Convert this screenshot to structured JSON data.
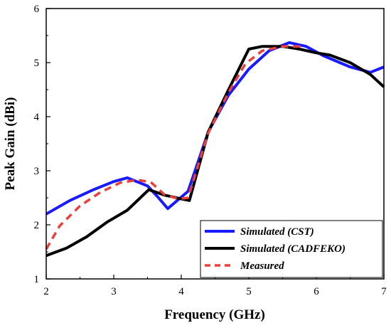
{
  "chart_data": {
    "type": "line",
    "xlabel": "Frequency (GHz)",
    "ylabel": "Peak Gain (dBi)",
    "xlim": [
      2,
      7
    ],
    "ylim": [
      1,
      6
    ],
    "xticks": [
      2,
      3,
      4,
      5,
      6,
      7
    ],
    "yticks": [
      1,
      2,
      3,
      4,
      5,
      6
    ],
    "grid": false,
    "legend_position": "bottom-right",
    "series": [
      {
        "name": "Simulated (CST)",
        "color": "#1a1aff",
        "dash": "solid",
        "x": [
          2.0,
          2.35,
          2.7,
          3.0,
          3.2,
          3.5,
          3.65,
          3.8,
          3.95,
          4.1,
          4.4,
          4.7,
          5.0,
          5.3,
          5.6,
          5.85,
          6.1,
          6.5,
          6.8,
          7.0
        ],
        "y": [
          2.2,
          2.45,
          2.65,
          2.8,
          2.87,
          2.72,
          2.52,
          2.3,
          2.46,
          2.62,
          3.72,
          4.4,
          4.88,
          5.22,
          5.37,
          5.3,
          5.13,
          4.92,
          4.82,
          4.92
        ]
      },
      {
        "name": "Simulated (CADFEKO)",
        "color": "#000000",
        "dash": "solid",
        "x": [
          2.0,
          2.3,
          2.6,
          2.9,
          3.2,
          3.52,
          3.75,
          4.0,
          4.12,
          4.4,
          4.7,
          5.0,
          5.2,
          5.5,
          5.75,
          6.0,
          6.2,
          6.5,
          6.8,
          7.0
        ],
        "y": [
          1.43,
          1.57,
          1.78,
          2.05,
          2.27,
          2.65,
          2.55,
          2.48,
          2.45,
          3.72,
          4.5,
          5.25,
          5.3,
          5.3,
          5.25,
          5.18,
          5.14,
          5.0,
          4.78,
          4.55
        ]
      },
      {
        "name": "Measured",
        "color": "#e8413c",
        "dash": "dashed",
        "x": [
          2.0,
          2.2,
          2.5,
          2.8,
          3.1,
          3.35,
          3.55,
          3.75,
          3.95,
          4.1,
          4.4,
          4.7,
          4.95,
          5.2,
          5.5,
          5.8
        ],
        "y": [
          1.55,
          1.98,
          2.35,
          2.6,
          2.78,
          2.83,
          2.79,
          2.56,
          2.48,
          2.5,
          3.7,
          4.45,
          4.98,
          5.22,
          5.3,
          5.3
        ]
      }
    ]
  }
}
